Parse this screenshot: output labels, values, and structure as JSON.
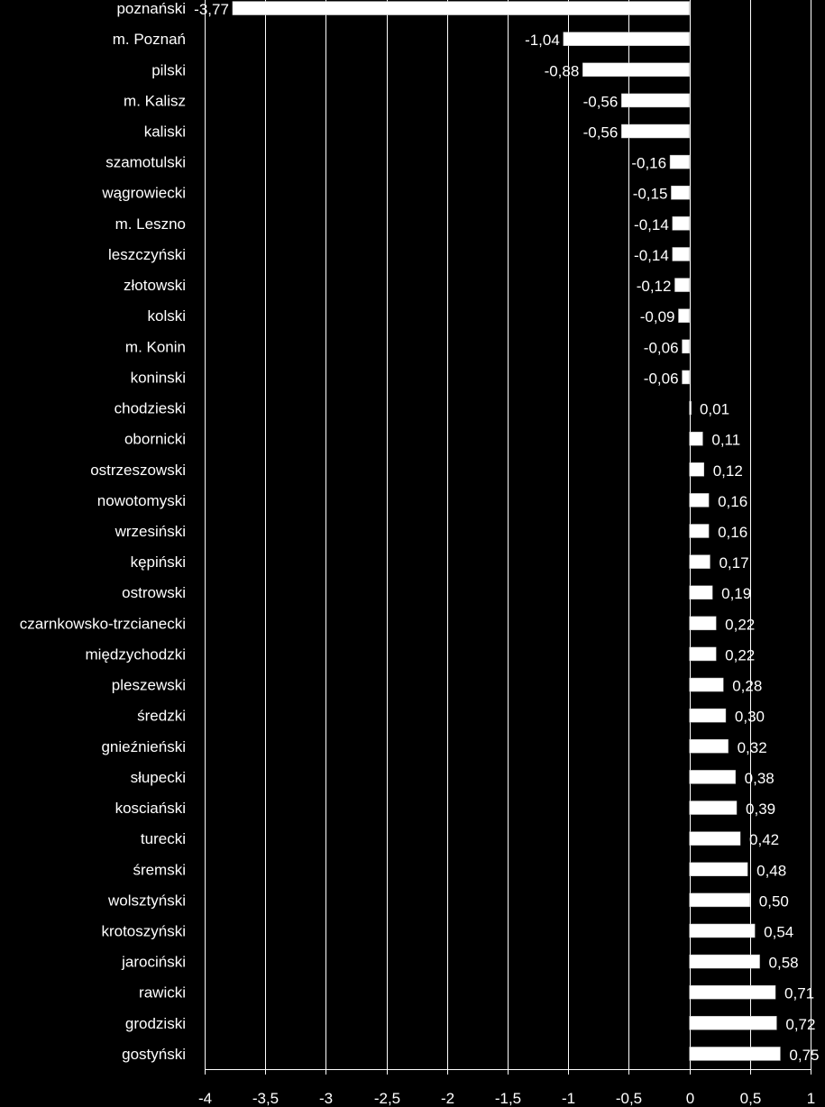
{
  "chart_data": {
    "type": "bar",
    "orientation": "horizontal",
    "title": "",
    "xlabel": "",
    "ylabel": "",
    "xlim": [
      -4,
      1
    ],
    "x_ticks": [
      -4,
      -3.5,
      -3,
      -2.5,
      -2,
      -1.5,
      -1,
      -0.5,
      0,
      0.5,
      1
    ],
    "x_tick_labels": [
      "-4",
      "-3,5",
      "-3",
      "-2,5",
      "-2",
      "-1,5",
      "-1",
      "-0,5",
      "0",
      "0,5",
      "1"
    ],
    "grid": "vertical",
    "legend": "none",
    "colors": {
      "background": "#000000",
      "bar": "#ffffff",
      "text": "#ffffff",
      "grid": "#ffffff"
    },
    "categories": [
      "poznański",
      "m. Poznań",
      "pilski",
      "m. Kalisz",
      "kaliski",
      "szamotulski",
      "wągrowiecki",
      "m. Leszno",
      "leszczyński",
      "złotowski",
      "kolski",
      "m. Konin",
      "koninski",
      "chodzieski",
      "obornicki",
      "ostrzeszowski",
      "nowotomyski",
      "wrzesiński",
      "kępiński",
      "ostrowski",
      "czarnkowsko-trzcianecki",
      "międzychodzki",
      "pleszewski",
      "średzki",
      "gnieźnieński",
      "słupecki",
      "kosciański",
      "turecki",
      "śremski",
      "wolsztyński",
      "krotoszyński",
      "jarociński",
      "rawicki",
      "grodziski",
      "gostyński"
    ],
    "values": [
      -3.77,
      -1.04,
      -0.88,
      -0.56,
      -0.56,
      -0.16,
      -0.15,
      -0.14,
      -0.14,
      -0.12,
      -0.09,
      -0.06,
      -0.06,
      0.01,
      0.11,
      0.12,
      0.16,
      0.16,
      0.17,
      0.19,
      0.22,
      0.22,
      0.28,
      0.3,
      0.32,
      0.38,
      0.39,
      0.42,
      0.48,
      0.5,
      0.54,
      0.58,
      0.71,
      0.72,
      0.75
    ],
    "value_labels": [
      "-3,77",
      "-1,04",
      "-0,88",
      "-0,56",
      "-0,56",
      "-0,16",
      "-0,15",
      "-0,14",
      "-0,14",
      "-0,12",
      "-0,09",
      "-0,06",
      "-0,06",
      "0,01",
      "0,11",
      "0,12",
      "0,16",
      "0,16",
      "0,17",
      "0,19",
      "0,22",
      "0,22",
      "0,28",
      "0,30",
      "0,32",
      "0,38",
      "0,39",
      "0,42",
      "0,48",
      "0,50",
      "0,54",
      "0,58",
      "0,71",
      "0,72",
      "0,75"
    ]
  }
}
